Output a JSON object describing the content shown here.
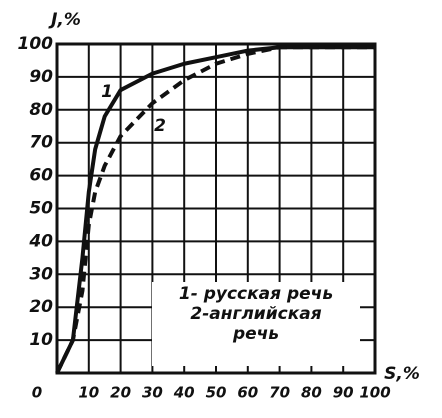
{
  "chart_data": {
    "type": "line",
    "y_label": "J,%",
    "x_label": "S,%",
    "x": [
      0,
      5,
      8,
      10,
      12,
      15,
      20,
      30,
      40,
      50,
      60,
      70,
      80,
      100
    ],
    "series": [
      {
        "name": "1- русская речь",
        "color": "#111111",
        "dash": false,
        "values": [
          0,
          10,
          35,
          55,
          68,
          78,
          86,
          91,
          94,
          96,
          98,
          99,
          99,
          99
        ]
      },
      {
        "name": "2-английская речь",
        "color": "#111111",
        "dash": true,
        "values": [
          0,
          10,
          25,
          45,
          55,
          63,
          72,
          82,
          89,
          94,
          97,
          99,
          99,
          99
        ]
      }
    ],
    "annotations": [
      "1",
      "2"
    ],
    "xlim": [
      0,
      100
    ],
    "ylim": [
      0,
      100
    ],
    "xticks": [
      0,
      10,
      20,
      30,
      40,
      50,
      60,
      70,
      80,
      90,
      100
    ],
    "yticks": [
      10,
      20,
      30,
      40,
      50,
      60,
      70,
      80,
      90,
      100
    ],
    "grid": true
  }
}
